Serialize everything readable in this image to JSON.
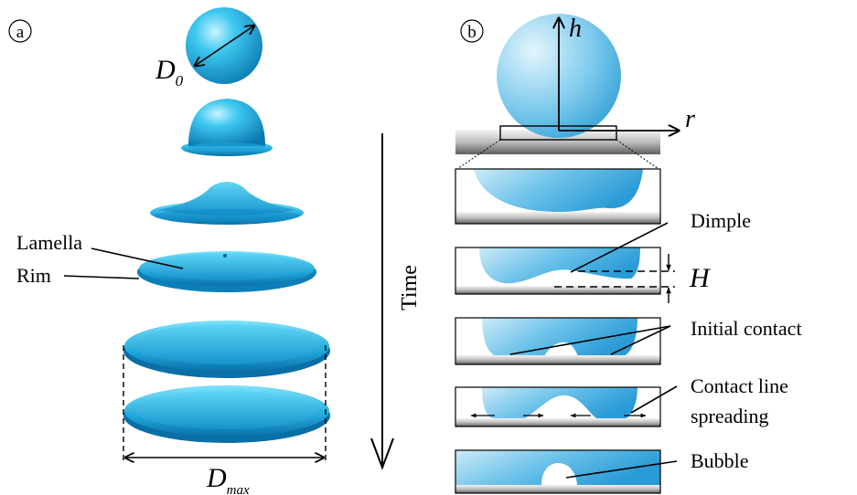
{
  "panel_a": {
    "tag": "a",
    "label_d0_main": "D",
    "label_d0_sub": "0",
    "label_lamella": "Lamella",
    "label_rim": "Rim",
    "label_dmax_main": "D",
    "label_dmax_sub": "max"
  },
  "time_label": "Time",
  "panel_b": {
    "tag": "b",
    "axis_h": "h",
    "axis_r": "r",
    "label_H": "H",
    "label_dimple": "Dimple",
    "label_initial_contact": "Initial  contact",
    "label_contact_line_1": "Contact line",
    "label_contact_line_2": "spreading",
    "label_bubble": "Bubble"
  },
  "colors": {
    "drop_light": "#9ad8ee",
    "drop_mid": "#3aaad8",
    "drop_dark": "#0a7fb8",
    "substrate_top": "#f0f0f0",
    "substrate_bottom": "#6a6a6a"
  }
}
